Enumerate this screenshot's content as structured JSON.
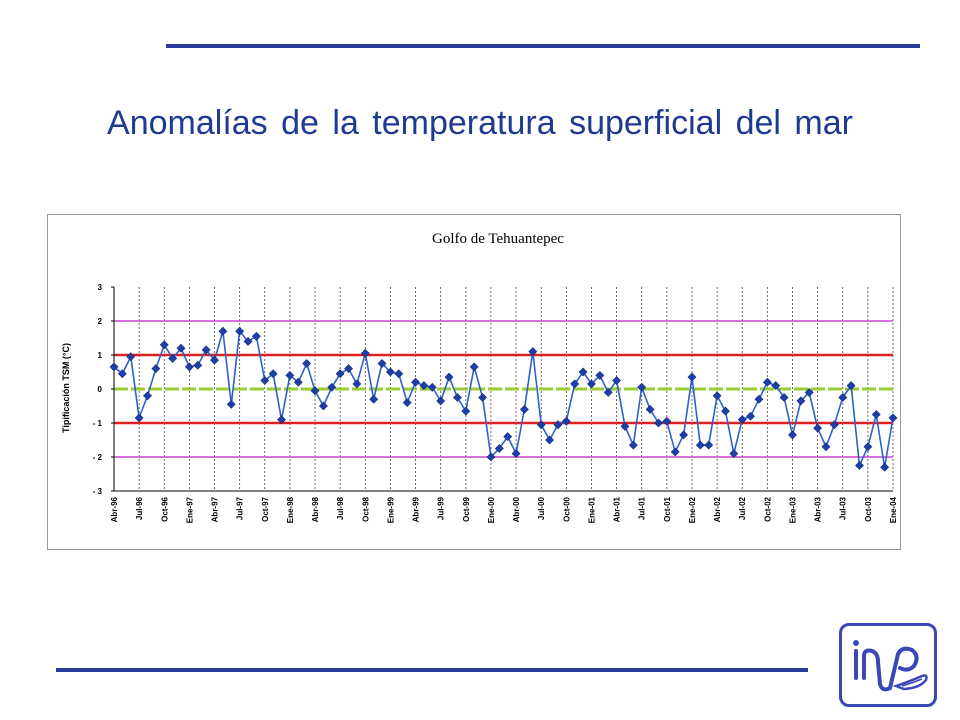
{
  "slide": {
    "title": "Anomalías de la temperatura superficial del mar"
  },
  "colors": {
    "rule": "#2b3a9c",
    "title": "#1f3a93",
    "series": "#2f62c8",
    "marker": "#1f3fa8",
    "zero_line": "#9acd32",
    "one_sigma": "#e02020",
    "two_sigma": "#d040d0"
  },
  "logo": {
    "icon": "inp-logo-icon"
  },
  "chart_data": {
    "type": "line",
    "title": "Golfo de Tehuantepec",
    "xlabel": "",
    "ylabel": "Tipificación TSM (°C)",
    "ylim": [
      -3,
      3
    ],
    "yticks": [
      "3",
      "2",
      "1",
      "0",
      "- 1",
      "- 2",
      "- 3"
    ],
    "grid": "vertical dashed",
    "reference_lines": [
      {
        "value": 2,
        "color": "#d040d0"
      },
      {
        "value": 1,
        "color": "#e02020"
      },
      {
        "value": 0,
        "color": "#9acd32"
      },
      {
        "value": -1,
        "color": "#e02020"
      },
      {
        "value": -2,
        "color": "#d040d0"
      }
    ],
    "x_tick_labels": [
      "Abr-96",
      "Jul-96",
      "Oct-96",
      "Ene-97",
      "Abr-97",
      "Jul-97",
      "Oct-97",
      "Ene-98",
      "Abr-98",
      "Jul-98",
      "Oct-98",
      "Ene-99",
      "Abr-99",
      "Jul-99",
      "Oct-99",
      "Ene-00",
      "Abr-00",
      "Jul-00",
      "Oct-00",
      "Ene-01",
      "Abr-01",
      "Jul-01",
      "Oct-01",
      "Ene-02",
      "Abr-02",
      "Jul-02",
      "Oct-02",
      "Ene-03",
      "Abr-03",
      "Jul-03",
      "Oct-03",
      "Ene-04"
    ],
    "x_start": "Abr-96",
    "series": [
      {
        "values": [
          0.65,
          0.45,
          0.95,
          -0.85,
          -0.2,
          0.6,
          1.3,
          0.9,
          1.2,
          0.65,
          0.7,
          1.15,
          0.85,
          1.7,
          -0.45,
          1.7,
          1.4,
          1.55,
          0.25,
          0.45,
          -0.9,
          0.4,
          0.2,
          0.75,
          -0.05,
          -0.5,
          0.05,
          0.45,
          0.6,
          0.15,
          1.05,
          -0.3,
          0.75,
          0.5,
          0.45,
          -0.4,
          0.2,
          0.1,
          0.05,
          -0.35,
          0.35,
          -0.25,
          -0.65,
          0.65,
          -0.25,
          -2.0,
          -1.75,
          -1.4,
          -1.9,
          -0.6,
          1.1,
          -1.05,
          -1.5,
          -1.05,
          -0.95,
          0.15,
          0.5,
          0.15,
          0.4,
          -0.1,
          0.25,
          -1.1,
          -1.65,
          0.05,
          -0.6,
          -1.0,
          -0.95,
          -1.85,
          -1.35,
          0.35,
          -1.65,
          -1.65,
          -0.2,
          -0.65,
          -1.9,
          -0.9,
          -0.8,
          -0.3,
          0.2,
          0.1,
          -0.25,
          -1.35,
          -0.35,
          -0.1,
          -1.15,
          -1.7,
          -1.05,
          -0.25,
          0.1,
          -2.25,
          -1.7,
          -0.75,
          -2.3,
          -0.85
        ]
      }
    ]
  }
}
